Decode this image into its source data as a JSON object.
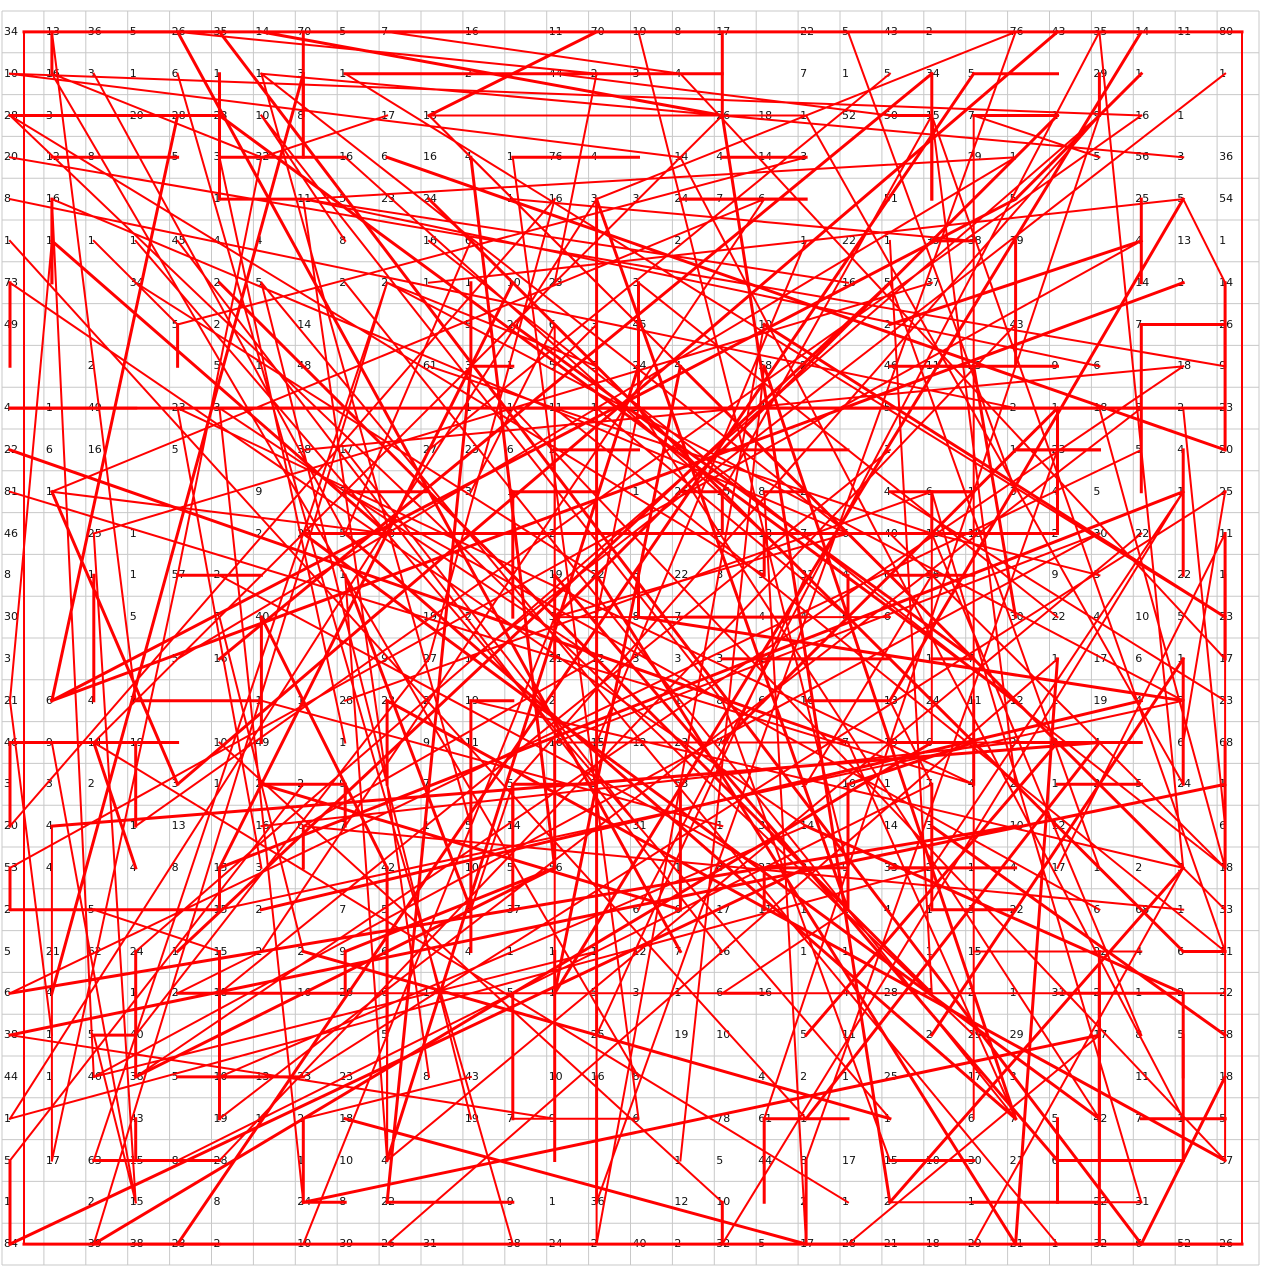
{
  "puzzle": {
    "columns": 30,
    "rows": 30,
    "grid_color": "#c8c8c8",
    "link_color": "#ff0000",
    "cells": [
      [
        "34",
        "13",
        "36",
        "5",
        "26",
        "35",
        "14",
        "70",
        "5",
        "7",
        "",
        "16",
        "",
        "11",
        "70",
        "19",
        "8",
        "17",
        "",
        "22",
        "5",
        "43",
        "2",
        "",
        "76",
        "43",
        "35",
        "14",
        "11",
        "80"
      ],
      [
        "10",
        "16",
        "3",
        "1",
        "6",
        "1",
        "1",
        "3",
        "1",
        "",
        "",
        "2",
        "",
        "44",
        "2",
        "3",
        "4",
        "",
        "",
        "7",
        "1",
        "5",
        "34",
        "5",
        "",
        "",
        "29",
        "1",
        "",
        "1"
      ],
      [
        "28",
        "3",
        "",
        "20",
        "28",
        "23",
        "10",
        "8",
        "",
        "17",
        "13",
        "",
        "",
        "",
        "",
        "",
        "",
        "26",
        "18",
        "1",
        "52",
        "50",
        "15",
        "7",
        "",
        "1",
        "9",
        "16",
        "1",
        ""
      ],
      [
        "20",
        "12",
        "8",
        "",
        "5",
        "3",
        "32",
        "",
        "16",
        "6",
        "16",
        "4",
        "1",
        "76",
        "4",
        "",
        "14",
        "4",
        "14",
        "3",
        "",
        "",
        "",
        "29",
        "1",
        "",
        "5",
        "56",
        "3",
        "36"
      ],
      [
        "8",
        "16",
        "",
        "",
        "",
        "1",
        "",
        "11",
        "5",
        "23",
        "24",
        "",
        "1",
        "16",
        "3",
        "3",
        "24",
        "7",
        "6",
        "",
        "",
        "51",
        "",
        "",
        "5",
        "",
        "",
        "25",
        "5",
        "54"
      ],
      [
        "1",
        "1",
        "1",
        "1",
        "45",
        "4",
        "4",
        "",
        "8",
        "",
        "16",
        "6",
        "",
        "",
        "",
        "",
        "2",
        "",
        "",
        "1",
        "22",
        "1",
        "35",
        "38",
        "39",
        "",
        "",
        "4",
        "13",
        "1"
      ],
      [
        "73",
        "",
        "",
        "34",
        "",
        "2",
        "5",
        "",
        "2",
        "2",
        "1",
        "1",
        "10",
        "23",
        "",
        "3",
        "",
        "",
        "",
        "",
        "16",
        "5",
        "37",
        "",
        "",
        "",
        "",
        "14",
        "2",
        "14"
      ],
      [
        "49",
        "",
        "",
        "",
        "5",
        "2",
        "",
        "14",
        "",
        "",
        "",
        "5",
        "21",
        "6",
        "3",
        "45",
        "",
        "",
        "10",
        "",
        "",
        "2",
        "",
        "",
        "43",
        "",
        "",
        "7",
        "",
        "26"
      ],
      [
        "",
        "",
        "2",
        "",
        "",
        "5",
        "1",
        "48",
        "",
        "",
        "61",
        "3",
        "1",
        "5",
        "5",
        "24",
        "4",
        "",
        "58",
        "2",
        "",
        "46",
        "11",
        "23",
        "",
        "9",
        "6",
        "",
        "18",
        "9"
      ],
      [
        "4",
        "1",
        "49",
        "",
        "23",
        "3",
        "",
        "",
        "",
        "",
        "",
        "1",
        "1",
        "11",
        "1",
        "3",
        "",
        "",
        "7",
        "",
        "",
        "5",
        "",
        "",
        "2",
        "1",
        "18",
        "3",
        "2",
        "23"
      ],
      [
        "22",
        "6",
        "16",
        "",
        "5",
        "",
        "",
        "38",
        "17",
        "",
        "27",
        "23",
        "6",
        "2",
        "",
        "",
        "2",
        "1",
        "",
        "",
        "",
        "1",
        "",
        "",
        "1",
        "23",
        "",
        "5",
        "4",
        "20"
      ],
      [
        "81",
        "1",
        "",
        "",
        "",
        "",
        "9",
        "",
        "2",
        "",
        "",
        "3",
        "1",
        "",
        "",
        "1",
        "26",
        "15",
        "8",
        "2",
        "",
        "4",
        "6",
        "1",
        "3",
        "4",
        "5",
        "",
        "1",
        "25"
      ],
      [
        "46",
        "",
        "25",
        "1",
        "",
        "",
        "2",
        "23",
        "5",
        "40",
        "",
        "",
        "",
        "2",
        "",
        "",
        "",
        "5",
        "18",
        "7",
        "6",
        "40",
        "13",
        "18",
        "",
        "2",
        "30",
        "22",
        "",
        "11"
      ],
      [
        "8",
        "",
        "1",
        "1",
        "57",
        "2",
        "",
        "",
        "1",
        "",
        "",
        "",
        "",
        "19",
        "22",
        "8",
        "22",
        "3",
        "5",
        "31",
        "4",
        "6",
        "36",
        "",
        "",
        "9",
        "3",
        "",
        "22",
        "1"
      ],
      [
        "30",
        "",
        "",
        "5",
        "",
        "5",
        "40",
        "",
        "",
        "",
        "19",
        "2",
        "",
        "3",
        "2",
        "8",
        "7",
        "",
        "4",
        "4",
        "6",
        "6",
        "",
        "",
        "30",
        "22",
        "4",
        "10",
        "5",
        "23"
      ],
      [
        "3",
        "",
        "",
        "",
        "5",
        "16",
        "",
        "",
        "",
        "9",
        "27",
        "1",
        "",
        "21",
        "12",
        "3",
        "3",
        "3",
        "14",
        "",
        "",
        "",
        "1",
        "7",
        "",
        "1",
        "17",
        "6",
        "1",
        "17"
      ],
      [
        "21",
        "6",
        "4",
        "7",
        "",
        "",
        "1",
        "1",
        "28",
        "22",
        "2",
        "19",
        "",
        "2",
        "",
        "",
        "1",
        "8",
        "6",
        "16",
        "",
        "13",
        "24",
        "11",
        "12",
        "2",
        "19",
        "4",
        "7",
        "23"
      ],
      [
        "46",
        "9",
        "14",
        "19",
        "",
        "10",
        "49",
        "",
        "1",
        "",
        "9",
        "11",
        "",
        "16",
        "15",
        "12",
        "23",
        "7",
        "",
        "",
        "7",
        "19",
        "6",
        "7",
        "3",
        "2",
        "4",
        "",
        "6",
        "68"
      ],
      [
        "3",
        "3",
        "2",
        "",
        "3",
        "1",
        "2",
        "2",
        "9",
        "",
        "7",
        "",
        "5",
        "",
        "3",
        "",
        "53",
        "",
        "",
        "1",
        "10",
        "1",
        "7",
        "4",
        "2",
        "1",
        "2",
        "5",
        "24",
        "1"
      ],
      [
        "20",
        "4",
        "",
        "1",
        "13",
        "",
        "16",
        "6",
        "7",
        "",
        "1",
        "5",
        "14",
        "",
        "",
        "31",
        "",
        "1",
        "3",
        "14",
        "",
        "14",
        "3",
        "",
        "10",
        "12",
        "",
        "",
        "",
        "6"
      ],
      [
        "53",
        "4",
        "",
        "4",
        "8",
        "15",
        "3",
        "",
        "",
        "42",
        "",
        "10",
        "5",
        "56",
        "",
        "",
        "1",
        "8",
        "23",
        "3",
        "9",
        "33",
        "2",
        "1",
        "4",
        "17",
        "1",
        "2",
        "3",
        "18"
      ],
      [
        "2",
        "",
        "5",
        "",
        "",
        "15",
        "2",
        "",
        "7",
        "5",
        "",
        "8",
        "37",
        "",
        "",
        "6",
        "6",
        "17",
        "11",
        "1",
        "2",
        "4",
        "1",
        "3",
        "22",
        "",
        "6",
        "68",
        "1",
        "33"
      ],
      [
        "5",
        "21",
        "62",
        "24",
        "1",
        "15",
        "2",
        "2",
        "9",
        "6",
        "",
        "4",
        "1",
        "1",
        "1",
        "12",
        "7",
        "16",
        "",
        "1",
        "1",
        "",
        "1",
        "15",
        "",
        "",
        "22",
        "4",
        "6",
        "11"
      ],
      [
        "6",
        "4",
        "",
        "1",
        "2",
        "18",
        "",
        "16",
        "20",
        "6",
        "17",
        "",
        "5",
        "1",
        "5",
        "3",
        "1",
        "6",
        "16",
        "",
        "4",
        "28",
        "4",
        "2",
        "1",
        "31",
        "2",
        "1",
        "2",
        "22"
      ],
      [
        "38",
        "1",
        "5",
        "40",
        "",
        "",
        "",
        "",
        "",
        "5",
        "",
        "",
        "",
        "",
        "25",
        "",
        "19",
        "10",
        "",
        "5",
        "11",
        "",
        "2",
        "29",
        "29",
        "",
        "17",
        "8",
        "5",
        "38"
      ],
      [
        "44",
        "1",
        "46",
        "38",
        "5",
        "10",
        "13",
        "23",
        "23",
        "",
        "8",
        "43",
        "",
        "10",
        "16",
        "8",
        "",
        "",
        "4",
        "2",
        "1",
        "25",
        "",
        "17",
        "3",
        "",
        "",
        "11",
        "",
        "18"
      ],
      [
        "1",
        "",
        "",
        "43",
        "",
        "19",
        "1",
        "2",
        "18",
        "",
        "",
        "19",
        "7",
        "9",
        "",
        "6",
        "",
        "78",
        "61",
        "1",
        "",
        "1",
        "",
        "6",
        "7",
        "5",
        "42",
        "7",
        "1",
        "5"
      ],
      [
        "5",
        "17",
        "63",
        "15",
        "8",
        "28",
        "",
        "1",
        "10",
        "4",
        "",
        "",
        "",
        "",
        "",
        "",
        "1",
        "5",
        "44",
        "8",
        "17",
        "15",
        "10",
        "30",
        "21",
        "6",
        "",
        "",
        "",
        "57"
      ],
      [
        "1",
        "",
        "2",
        "15",
        "",
        "8",
        "",
        "24",
        "8",
        "22",
        "",
        "",
        "9",
        "1",
        "36",
        "",
        "12",
        "10",
        "",
        "2",
        "1",
        "2",
        "",
        "1",
        "",
        "",
        "22",
        "31",
        "",
        ""
      ],
      [
        "84",
        "",
        "39",
        "38",
        "23",
        "2",
        "",
        "10",
        "39",
        "26",
        "31",
        "",
        "38",
        "24",
        "2",
        "40",
        "2",
        "32",
        "5",
        "17",
        "28",
        "21",
        "18",
        "29",
        "21",
        "1",
        "32",
        "6",
        "52",
        "26"
      ]
    ]
  }
}
